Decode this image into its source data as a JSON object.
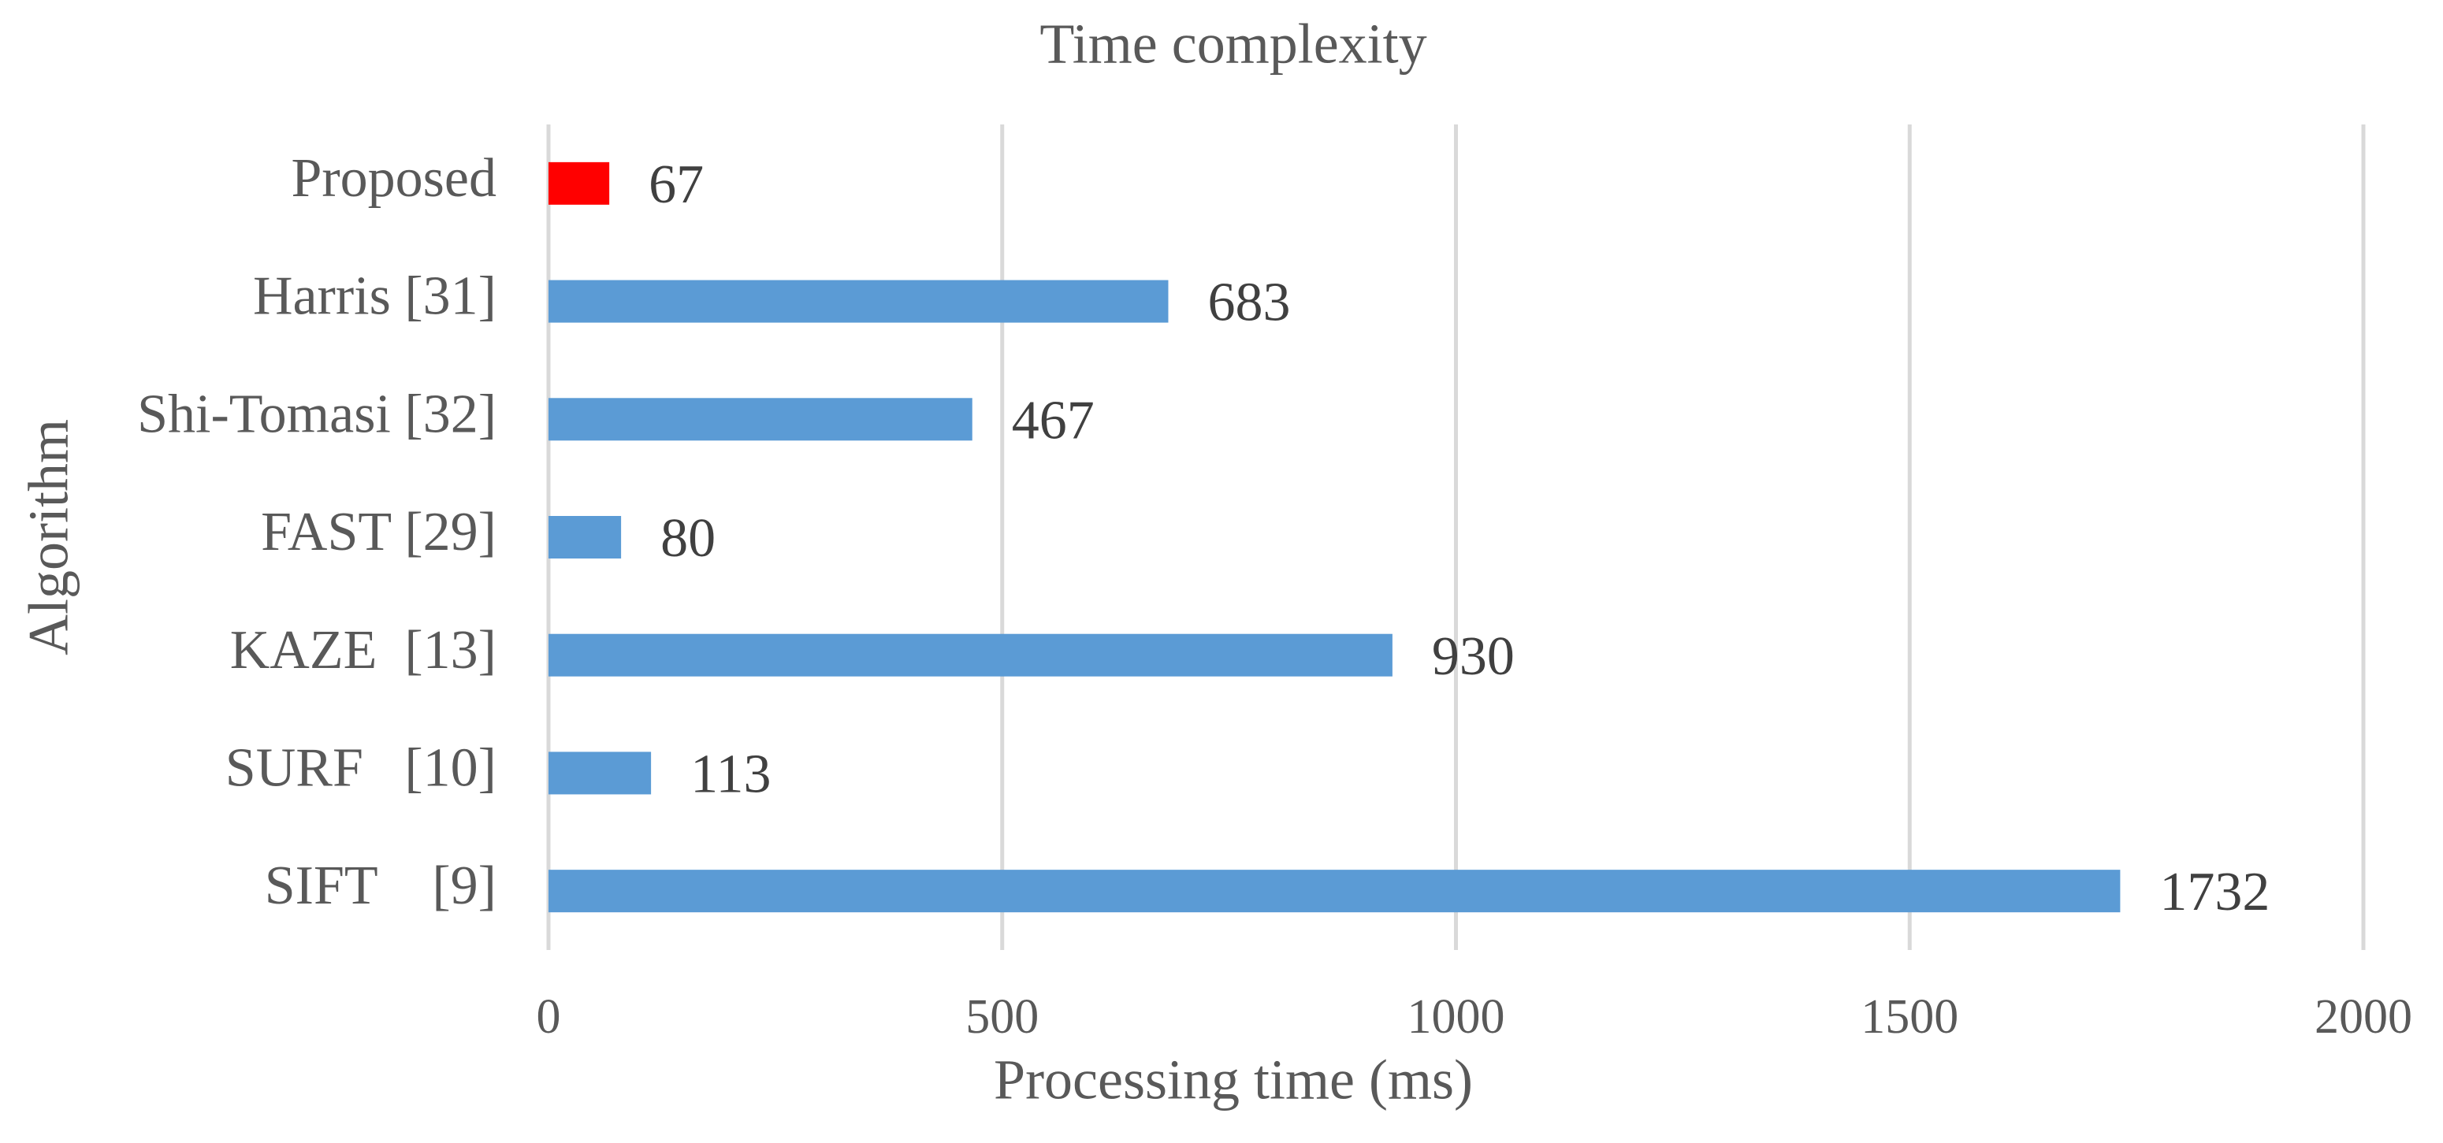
{
  "chart_data": {
    "type": "bar",
    "orientation": "horizontal",
    "title": "Time complexity",
    "x_label": "Processing time (ms)",
    "y_label": "Algorithm",
    "categories": [
      "Proposed",
      "Harris [31]",
      "Shi-Tomasi [32]",
      "FAST [29]",
      "KAZE  [13]",
      "SURF   [10]",
      "SIFT    [9]"
    ],
    "values": [
      67,
      683,
      467,
      80,
      930,
      113,
      1732
    ],
    "colors": [
      "#ff0000",
      "#5b9bd5",
      "#5b9bd5",
      "#5b9bd5",
      "#5b9bd5",
      "#5b9bd5",
      "#5b9bd5"
    ],
    "xlim": [
      0,
      2000
    ],
    "xticks": [
      0,
      500,
      1000,
      1500,
      2000
    ],
    "grid": true
  }
}
